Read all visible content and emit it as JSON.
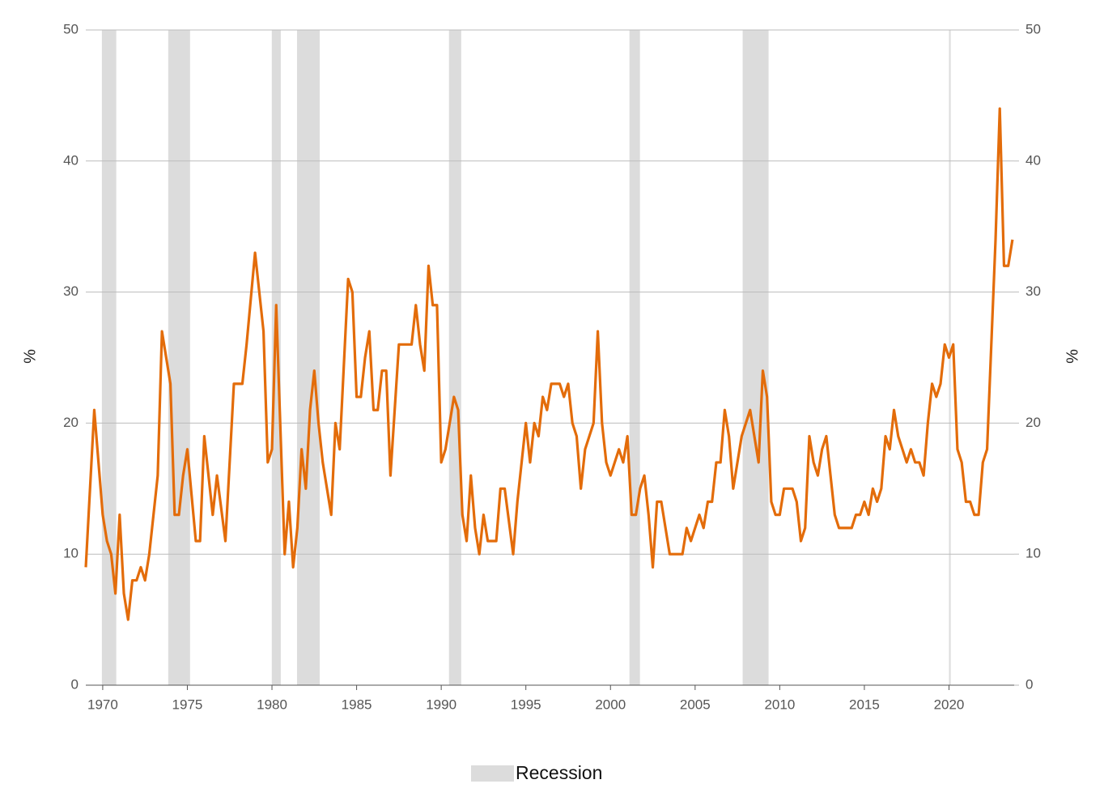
{
  "chart_data": {
    "type": "line",
    "color": "#e36c0a",
    "x": [
      1969,
      1969.5,
      1970,
      1970.25,
      1970.5,
      1970.75,
      1971,
      1971.25,
      1971.5,
      1971.75,
      1972,
      1972.25,
      1972.5,
      1972.75,
      1973.25,
      1973.5,
      1974,
      1974.25,
      1974.5,
      1974.75,
      1975,
      1975.5,
      1975.75,
      1976,
      1976.5,
      1976.75,
      1977.25,
      1977.75,
      1978.25,
      1978.5,
      1979,
      1979.5,
      1979.75,
      1980,
      1980.25,
      1980.75,
      1981,
      1981.25,
      1981.5,
      1981.75,
      1982,
      1982.25,
      1982.5,
      1982.75,
      1983,
      1983.5,
      1983.75,
      1984,
      1984.5,
      1984.75,
      1985,
      1985.25,
      1985.5,
      1985.75,
      1986,
      1986.25,
      1986.5,
      1986.75,
      1987,
      1987.5,
      1988.25,
      1988.5,
      1988.75,
      1989,
      1989.25,
      1989.5,
      1989.75,
      1990,
      1990.25,
      1990.75,
      1991,
      1991.25,
      1991.5,
      1991.75,
      1992,
      1992.25,
      1992.5,
      1992.75,
      1993.25,
      1993.5,
      1993.75,
      1994.25,
      1994.5,
      1995,
      1995.25,
      1995.5,
      1995.75,
      1996,
      1996.25,
      1996.5,
      1997,
      1997.25,
      1997.5,
      1997.75,
      1998,
      1998.25,
      1998.5,
      1999,
      1999.25,
      1999.5,
      1999.75,
      2000,
      2000.5,
      2000.75,
      2001,
      2001.25,
      2001.5,
      2001.75,
      2002,
      2002.25,
      2002.5,
      2002.75,
      2003,
      2003.5,
      2004.25,
      2004.5,
      2004.75,
      2005.25,
      2005.5,
      2005.75,
      2006,
      2006.25,
      2006.5,
      2006.75,
      2007,
      2007.25,
      2007.75,
      2008.25,
      2008.75,
      2009,
      2009.25,
      2009.5,
      2009.75,
      2010,
      2010.25,
      2010.75,
      2011,
      2011.25,
      2011.5,
      2011.75,
      2012,
      2012.25,
      2012.5,
      2012.75,
      2013.25,
      2013.5,
      2014.25,
      2014.5,
      2014.75,
      2015,
      2015.25,
      2015.5,
      2015.75,
      2016,
      2016.25,
      2016.5,
      2016.75,
      2017,
      2017.25,
      2017.5,
      2017.75,
      2018,
      2018.25,
      2018.5,
      2018.75,
      2019,
      2019.25,
      2019.5,
      2019.75,
      2020,
      2020.25,
      2020.5,
      2020.75,
      2021,
      2021.25,
      2021.5,
      2021.75,
      2022,
      2022.25,
      2022.5,
      2022.75,
      2023,
      2023.25,
      2023.5,
      2023.75
    ],
    "values": [
      9,
      21,
      13,
      11,
      10,
      7,
      13,
      7,
      5,
      8,
      8,
      9,
      8,
      10,
      16,
      27,
      23,
      13,
      13,
      16,
      18,
      11,
      11,
      19,
      13,
      16,
      11,
      23,
      23,
      26,
      33,
      27,
      17,
      18,
      29,
      10,
      14,
      9,
      12,
      18,
      15,
      21,
      24,
      20,
      17,
      13,
      20,
      18,
      31,
      30,
      22,
      22,
      25,
      27,
      21,
      21,
      24,
      24,
      16,
      26,
      26,
      29,
      26,
      24,
      32,
      29,
      29,
      17,
      18,
      22,
      21,
      13,
      11,
      16,
      12,
      10,
      13,
      11,
      11,
      15,
      15,
      10,
      14,
      20,
      17,
      20,
      19,
      22,
      21,
      23,
      23,
      22,
      23,
      20,
      19,
      15,
      18,
      20,
      27,
      20,
      17,
      16,
      18,
      17,
      19,
      13,
      13,
      15,
      16,
      13,
      9,
      14,
      14,
      10,
      10,
      12,
      11,
      13,
      12,
      14,
      14,
      17,
      17,
      21,
      19,
      15,
      19,
      21,
      17,
      24,
      22,
      14,
      13,
      13,
      15,
      15,
      14,
      11,
      12,
      19,
      17,
      16,
      18,
      19,
      13,
      12,
      12,
      13,
      13,
      14,
      13,
      15,
      14,
      15,
      19,
      18,
      21,
      19,
      18,
      17,
      18,
      17,
      17,
      16,
      20,
      23,
      22,
      23,
      26,
      25,
      26,
      18,
      17,
      14,
      14,
      13,
      13,
      17,
      18,
      26,
      34,
      44,
      32,
      32,
      34
    ],
    "xlim": [
      1969,
      2023.85
    ],
    "xticks": [
      1970,
      1975,
      1980,
      1985,
      1990,
      1995,
      2000,
      2005,
      2010,
      2015,
      2020
    ],
    "ylim": [
      0,
      50
    ],
    "yticks": [
      0,
      10,
      20,
      30,
      40,
      50
    ],
    "y2lim": [
      0,
      50
    ],
    "y2ticks": [
      0,
      10,
      20,
      30,
      40,
      50
    ],
    "y_label": "%",
    "y2_label": "%",
    "grid": true,
    "recessions": {
      "name": "Recession",
      "color": "#dcdcdc",
      "ranges": [
        [
          1969.95,
          1970.8
        ],
        [
          1973.87,
          1975.16
        ],
        [
          1979.99,
          1980.52
        ],
        [
          1981.48,
          1982.82
        ],
        [
          1990.46,
          1991.18
        ],
        [
          2001.12,
          2001.74
        ],
        [
          2007.81,
          2009.34
        ],
        [
          2020.0,
          2020.1
        ]
      ]
    }
  }
}
